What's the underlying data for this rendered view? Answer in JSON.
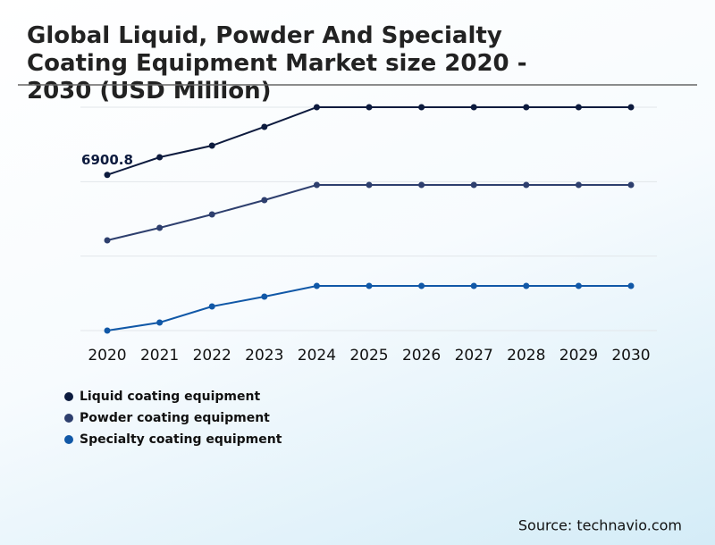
{
  "chart_data": {
    "type": "line",
    "title": "Global Liquid, Powder And Specialty Coating Equipment Market size 2020 - 2030 (USD Million)",
    "source": "Source: technavio.com",
    "categories": [
      "2020",
      "2021",
      "2022",
      "2023",
      "2024",
      "2025",
      "2026",
      "2027",
      "2028",
      "2029",
      "2030"
    ],
    "series": [
      {
        "name": "Liquid coating equipment",
        "color": "#0d1b3e",
        "values": [
          6900.8,
          7682,
          8197,
          9029,
          9900,
          9900,
          9900,
          9900,
          9900,
          9900,
          9900
        ]
      },
      {
        "name": "Powder coating equipment",
        "color": "#2e3f6e",
        "values": [
          4000,
          4554,
          5148,
          5782,
          6455,
          6455,
          6455,
          6455,
          6455,
          6455,
          6455
        ]
      },
      {
        "name": "Specialty coating equipment",
        "color": "#1158a7",
        "values": [
          0,
          356,
          1069,
          1505,
          1980,
          1980,
          1980,
          1980,
          1980,
          1980,
          1980
        ]
      }
    ],
    "ylim": [
      0,
      9900
    ],
    "yticks": [
      0,
      3300,
      6600,
      9900
    ],
    "ytick_labels": false,
    "grid": true
  }
}
